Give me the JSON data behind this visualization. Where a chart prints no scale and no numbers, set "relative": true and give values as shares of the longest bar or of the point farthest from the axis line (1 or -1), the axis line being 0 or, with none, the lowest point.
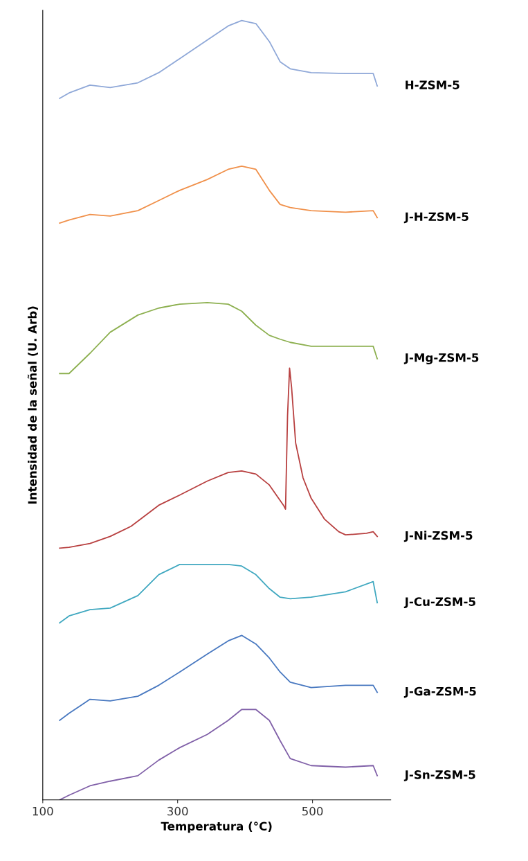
{
  "chart_data": {
    "type": "line",
    "relative": true,
    "xlabel": "Temperatura (°C)",
    "ylabel": "Intensidad de la señal (U. Arb)",
    "xlim": [
      100,
      616
    ],
    "xticks": [
      100,
      300,
      500
    ],
    "grid": false,
    "legend": false,
    "marker": "none",
    "line_style": "solid",
    "x": [
      125,
      139,
      170,
      200,
      241,
      272,
      303,
      344,
      375,
      395,
      416,
      436,
      452,
      467,
      498,
      549,
      590,
      596
    ],
    "series": [
      {
        "name": "H-ZSM-5",
        "color": "#8fa8d8",
        "values": [
          0.9,
          0.907,
          0.917,
          0.914,
          0.92,
          0.933,
          0.951,
          0.975,
          0.993,
          1.0,
          0.996,
          0.973,
          0.947,
          0.938,
          0.933,
          0.932,
          0.932,
          0.916
        ]
      },
      {
        "name": "J-H-ZSM-5",
        "color": "#f0904a",
        "values": [
          0.74,
          0.744,
          0.751,
          0.749,
          0.756,
          0.769,
          0.782,
          0.796,
          0.809,
          0.813,
          0.809,
          0.782,
          0.764,
          0.76,
          0.756,
          0.754,
          0.756,
          0.747
        ]
      },
      {
        "name": "J-Mg-ZSM-5",
        "color": "#8db050",
        "values": [
          0.547,
          0.547,
          0.573,
          0.6,
          0.622,
          0.631,
          0.636,
          0.638,
          0.636,
          0.627,
          0.609,
          0.596,
          0.591,
          0.587,
          0.582,
          0.582,
          0.582,
          0.566
        ]
      },
      {
        "name": "J-Ni-ZSM-5",
        "color": "#b84040",
        "x": [
          125,
          139,
          170,
          200,
          231,
          272,
          303,
          344,
          375,
          395,
          416,
          436,
          457,
          460,
          463,
          466,
          469,
          475,
          486,
          498,
          518,
          539,
          549,
          580,
          590,
          596
        ],
        "values": [
          0.323,
          0.324,
          0.329,
          0.338,
          0.351,
          0.378,
          0.391,
          0.409,
          0.42,
          0.422,
          0.418,
          0.404,
          0.378,
          0.373,
          0.493,
          0.554,
          0.529,
          0.458,
          0.413,
          0.387,
          0.36,
          0.344,
          0.34,
          0.342,
          0.344,
          0.338
        ]
      },
      {
        "name": "J-Cu-ZSM-5",
        "color": "#40a8c0",
        "values": [
          0.227,
          0.236,
          0.244,
          0.246,
          0.262,
          0.289,
          0.302,
          0.302,
          0.302,
          0.3,
          0.289,
          0.271,
          0.26,
          0.258,
          0.26,
          0.267,
          0.28,
          0.253
        ]
      },
      {
        "name": "J-Ga-ZSM-5",
        "color": "#4878c0",
        "values": [
          0.102,
          0.111,
          0.129,
          0.127,
          0.133,
          0.147,
          0.164,
          0.187,
          0.204,
          0.211,
          0.2,
          0.182,
          0.164,
          0.151,
          0.144,
          0.147,
          0.147,
          0.138
        ]
      },
      {
        "name": "J-Sn-ZSM-5",
        "color": "#8060a8",
        "values": [
          0.0,
          0.006,
          0.018,
          0.024,
          0.031,
          0.051,
          0.067,
          0.084,
          0.102,
          0.116,
          0.116,
          0.102,
          0.076,
          0.053,
          0.044,
          0.042,
          0.044,
          0.031
        ]
      }
    ]
  }
}
